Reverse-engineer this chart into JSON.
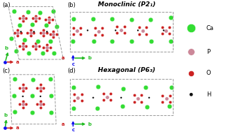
{
  "panel_labels": [
    "(a)",
    "(b)",
    "(c)",
    "(d)"
  ],
  "panel_titles_b": "Monoclinic (P2₁)",
  "panel_titles_d": "Hexagonal (P6₃)",
  "legend_labels": [
    "Ca",
    "P",
    "O",
    "H"
  ],
  "legend_colors": [
    "#33dd33",
    "#cc8899",
    "#cc2222",
    "#111111"
  ],
  "axis_colors": {
    "a": "#cc2222",
    "b": "#22bb22",
    "c": "#1111ee"
  },
  "background": "#ffffff",
  "dashed_box_color": "#999999",
  "panel_label_fontsize": 6,
  "title_fontsize": 6.5,
  "legend_fontsize": 6
}
